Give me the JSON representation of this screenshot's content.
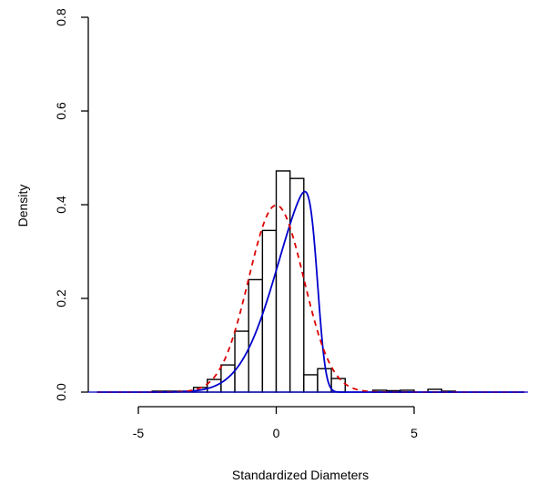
{
  "chart_data": {
    "type": "bar",
    "title": "",
    "xlabel": "Standardized Diameters",
    "ylabel": "Density",
    "xlim": [
      -6.5,
      9
    ],
    "ylim": [
      0,
      0.8
    ],
    "xticks": [
      -5,
      0,
      5
    ],
    "yticks": [
      0.0,
      0.2,
      0.4,
      0.6,
      0.8
    ],
    "xtick_labels": [
      "-5",
      "0",
      "5"
    ],
    "ytick_labels": [
      "0.0",
      "0.2",
      "0.4",
      "0.6",
      "0.8"
    ],
    "bin_width": 0.5,
    "bins": [
      {
        "x0": -4.5,
        "x1": -4.0,
        "density": 0.002
      },
      {
        "x0": -4.0,
        "x1": -3.5,
        "density": 0.002
      },
      {
        "x0": -3.5,
        "x1": -3.0,
        "density": 0.002
      },
      {
        "x0": -3.0,
        "x1": -2.5,
        "density": 0.01
      },
      {
        "x0": -2.5,
        "x1": -2.0,
        "density": 0.027
      },
      {
        "x0": -2.0,
        "x1": -1.5,
        "density": 0.058
      },
      {
        "x0": -1.5,
        "x1": -1.0,
        "density": 0.13
      },
      {
        "x0": -1.0,
        "x1": -0.5,
        "density": 0.24
      },
      {
        "x0": -0.5,
        "x1": 0.0,
        "density": 0.345
      },
      {
        "x0": 0.0,
        "x1": 0.5,
        "density": 0.472
      },
      {
        "x0": 0.5,
        "x1": 1.0,
        "density": 0.456
      },
      {
        "x0": 1.0,
        "x1": 1.5,
        "density": 0.037
      },
      {
        "x0": 1.5,
        "x1": 2.0,
        "density": 0.05
      },
      {
        "x0": 2.0,
        "x1": 2.5,
        "density": 0.029
      },
      {
        "x0": 3.5,
        "x1": 4.0,
        "density": 0.004
      },
      {
        "x0": 4.0,
        "x1": 4.5,
        "density": 0.003
      },
      {
        "x0": 4.5,
        "x1": 5.0,
        "density": 0.004
      },
      {
        "x0": 5.5,
        "x1": 6.0,
        "density": 0.006
      },
      {
        "x0": 6.0,
        "x1": 6.5,
        "density": 0.002
      }
    ],
    "curves": [
      {
        "style": "solid",
        "color": "#0000cc",
        "kind": "fitted-density",
        "mean": 0.55,
        "sd": 0.9,
        "skew": -6
      },
      {
        "style": "dashed",
        "color": "#dd0000",
        "kind": "standard-normal",
        "mean": 0,
        "sd": 1
      }
    ],
    "grid": false,
    "legend": false
  }
}
